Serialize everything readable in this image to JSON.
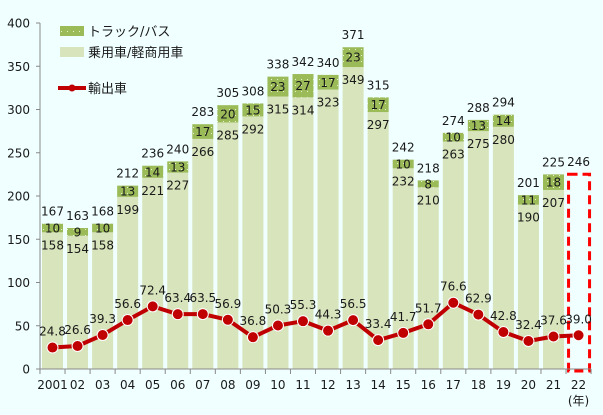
{
  "chart_data": {
    "type": "bar",
    "subtype": "stacked bar with line overlay",
    "categories": [
      "2001",
      "02",
      "03",
      "04",
      "05",
      "06",
      "07",
      "08",
      "09",
      "10",
      "11",
      "12",
      "13",
      "14",
      "15",
      "16",
      "17",
      "18",
      "19",
      "20",
      "21",
      "22"
    ],
    "x_unit_label": "(年)",
    "ylim": [
      0,
      400
    ],
    "yticks": [
      0,
      50,
      100,
      150,
      200,
      250,
      300,
      350,
      400
    ],
    "grid": false,
    "legend_position": "top-left",
    "series": [
      {
        "name": "乗用車/軽商用車",
        "type": "bar",
        "color": "#D8E4BC",
        "values": [
          158,
          154,
          158,
          199,
          221,
          227,
          266,
          285,
          292,
          315,
          314,
          323,
          349,
          297,
          232,
          210,
          263,
          275,
          280,
          190,
          207,
          null
        ]
      },
      {
        "name": "トラック/バス",
        "type": "bar",
        "color": "#9BBB59",
        "values": [
          10,
          9,
          10,
          13,
          14,
          13,
          17,
          20,
          15,
          23,
          27,
          17,
          23,
          17,
          10,
          8,
          10,
          13,
          14,
          11,
          18,
          null
        ]
      },
      {
        "name": "輸出車",
        "type": "line",
        "color": "#C00000",
        "values": [
          24.8,
          26.6,
          39.3,
          56.6,
          72.4,
          63.4,
          63.5,
          56.9,
          36.8,
          50.3,
          55.3,
          44.3,
          56.5,
          33.4,
          41.7,
          51.7,
          76.6,
          62.9,
          42.8,
          32.4,
          37.6,
          39.0
        ]
      }
    ],
    "totals": [
      167,
      163,
      168,
      212,
      236,
      240,
      283,
      305,
      308,
      338,
      342,
      340,
      371,
      315,
      242,
      218,
      274,
      288,
      294,
      201,
      225,
      246
    ],
    "line_labels": [
      "24.8",
      "26.6",
      "39.3",
      "56.6",
      "72.4",
      "63.4",
      "63.5",
      "56.9",
      "36.8",
      "50.3",
      "55.3",
      "44.3",
      "56.5",
      "33.4",
      "41.7",
      "51.7",
      "76.6",
      "62.9",
      "42.8",
      "32.4",
      "37.6",
      "39.0"
    ],
    "highlight": {
      "category": "22",
      "style": "dashed-box",
      "color": "#FF0000"
    },
    "legend": [
      {
        "label": "トラック/バス",
        "color": "#9BBB59",
        "kind": "box-dotted"
      },
      {
        "label": "乗用車/軽商用車",
        "color": "#D8E4BC",
        "kind": "box"
      },
      {
        "label": "輸出車",
        "color": "#C00000",
        "kind": "line-marker"
      }
    ]
  }
}
